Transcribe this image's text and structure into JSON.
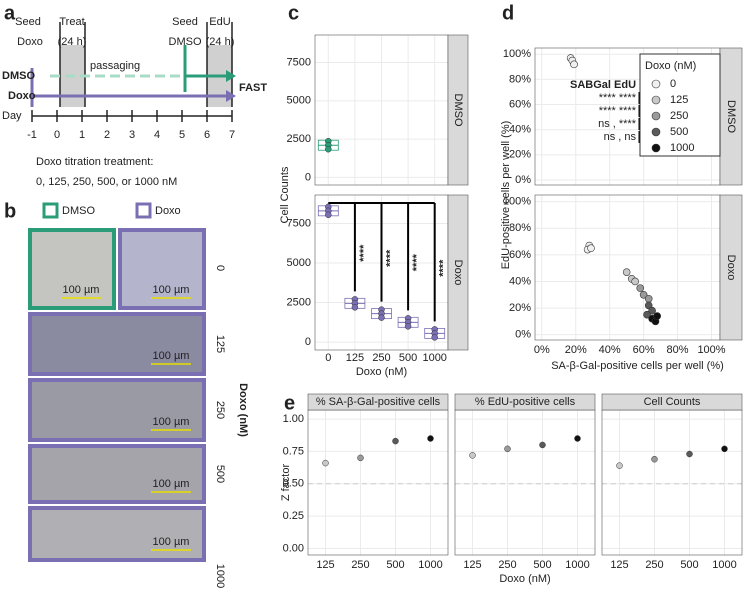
{
  "panel_labels": [
    "a",
    "b",
    "c",
    "d",
    "e"
  ],
  "timeline": {
    "seed_doxo": [
      "Seed",
      "Doxo"
    ],
    "treat": [
      "Treat",
      "(24 h)"
    ],
    "seed_dmso": [
      "Seed",
      "DMSO"
    ],
    "edu": [
      "EdU",
      "(24 h)"
    ],
    "arrow_dmso": "DMSO",
    "passaging": "passaging",
    "arrow_doxo": "Doxo",
    "fast": "FAST",
    "day_label": "Day",
    "days": [
      -1,
      0,
      1,
      2,
      3,
      4,
      5,
      6,
      7
    ],
    "note": [
      "Doxo titration treatment:",
      "0, 125, 250, 500, or 1000 nM"
    ]
  },
  "images": {
    "legend": [
      "DMSO",
      "Doxo"
    ],
    "doses": [
      "0",
      "125",
      "250",
      "500",
      "1000"
    ],
    "dose_title": "Doxo (nM)",
    "scale_bar": "100 µm"
  },
  "chart_data": [
    {
      "type": "box",
      "facet": "DMSO",
      "categories": [
        "0",
        "125",
        "250",
        "500",
        "1000"
      ],
      "values": [
        2100,
        null,
        null,
        null,
        null
      ],
      "color": "#2a9d78",
      "ylim": [
        -500,
        9300
      ],
      "yticks": [
        0,
        2500,
        5000,
        7500
      ],
      "grid": true
    },
    {
      "type": "box",
      "facet": "Doxo",
      "categories": [
        "0",
        "125",
        "250",
        "500",
        "1000"
      ],
      "values": [
        8300,
        2450,
        1800,
        1250,
        550
      ],
      "color": "#7b6fb3",
      "ylim": [
        -500,
        9300
      ],
      "yticks": [
        0,
        2500,
        5000,
        7500
      ],
      "grid": true,
      "y_label": "Cell Counts",
      "x_label": "Doxo (nM)",
      "annotations": [
        "****",
        "****",
        "****",
        "****"
      ]
    },
    {
      "type": "scatter",
      "facet": "DMSO",
      "series": [
        {
          "name": "0",
          "color": "#f0f0f0",
          "x": [
            17,
            18,
            19
          ],
          "y": [
            97,
            95,
            92
          ]
        }
      ],
      "xlim": [
        -4,
        105
      ],
      "ylim": [
        -4,
        105
      ],
      "yticks": [
        {
          "value": 0,
          "label": "0%"
        },
        {
          "value": 20,
          "label": "20%"
        },
        {
          "value": 40,
          "label": "40%"
        },
        {
          "value": 60,
          "label": "60%"
        },
        {
          "value": 80,
          "label": "80%"
        },
        {
          "value": 100,
          "label": "100%"
        }
      ],
      "annotation_header": "SABGal EdU",
      "annotations": [
        "**** ****",
        "**** ****",
        "ns , ****",
        "ns , ns"
      ],
      "grid": true
    },
    {
      "type": "scatter",
      "facet": "Doxo",
      "legend_title": "Doxo (nM)",
      "series": [
        {
          "name": "0",
          "color": "#f0f0f0",
          "x": [
            28,
            27,
            29
          ],
          "y": [
            67,
            64,
            65
          ]
        },
        {
          "name": "125",
          "color": "#c8c8c8",
          "x": [
            50,
            53,
            55
          ],
          "y": [
            47,
            42,
            40
          ]
        },
        {
          "name": "250",
          "color": "#9a9a9a",
          "x": [
            58,
            60,
            63
          ],
          "y": [
            35,
            30,
            27
          ]
        },
        {
          "name": "500",
          "color": "#5a5a5a",
          "x": [
            63,
            65,
            62
          ],
          "y": [
            22,
            18,
            15
          ]
        },
        {
          "name": "1000",
          "color": "#111111",
          "x": [
            65,
            67,
            68
          ],
          "y": [
            12,
            10,
            14
          ]
        }
      ],
      "xlim": [
        -4,
        105
      ],
      "ylim": [
        -4,
        105
      ],
      "xticks": [
        {
          "value": 0,
          "label": "0%"
        },
        {
          "value": 20,
          "label": "20%"
        },
        {
          "value": 40,
          "label": "40%"
        },
        {
          "value": 60,
          "label": "60%"
        },
        {
          "value": 80,
          "label": "80%"
        },
        {
          "value": 100,
          "label": "100%"
        }
      ],
      "yticks": [
        {
          "value": 0,
          "label": "0%"
        },
        {
          "value": 20,
          "label": "20%"
        },
        {
          "value": 40,
          "label": "40%"
        },
        {
          "value": 60,
          "label": "60%"
        },
        {
          "value": 80,
          "label": "80%"
        },
        {
          "value": 100,
          "label": "100%"
        }
      ],
      "x_label": "SA-β-Gal-positive cells per well (%)",
      "y_label": "EdU-positive cells per well (%)",
      "grid": true
    },
    {
      "type": "dot",
      "facet": "% SA-β-Gal-positive cells",
      "categories": [
        "125",
        "250",
        "500",
        "1000"
      ],
      "values": [
        0.66,
        0.7,
        0.83,
        0.85
      ],
      "colors": [
        "#c8c8c8",
        "#9a9a9a",
        "#5a5a5a",
        "#111111"
      ],
      "ylim": [
        -0.05,
        1.07
      ],
      "reference_line": 0.5,
      "yticks": [
        {
          "value": 0,
          "label": "0.00"
        },
        {
          "value": 0.25,
          "label": "0.25"
        },
        {
          "value": 0.5,
          "label": "0.50"
        },
        {
          "value": 0.75,
          "label": "0.75"
        },
        {
          "value": 1,
          "label": "1.00"
        }
      ],
      "y_label": "Z factor",
      "grid": true
    },
    {
      "type": "dot",
      "facet": "% EdU-positive cells",
      "categories": [
        "125",
        "250",
        "500",
        "1000"
      ],
      "values": [
        0.72,
        0.77,
        0.8,
        0.85
      ],
      "colors": [
        "#c8c8c8",
        "#9a9a9a",
        "#5a5a5a",
        "#111111"
      ],
      "ylim": [
        -0.05,
        1.07
      ],
      "reference_line": 0.5,
      "x_label": "Doxo (nM)",
      "grid": true
    },
    {
      "type": "dot",
      "facet": "Cell Counts",
      "categories": [
        "125",
        "250",
        "500",
        "1000"
      ],
      "values": [
        0.64,
        0.69,
        0.73,
        0.77
      ],
      "colors": [
        "#c8c8c8",
        "#9a9a9a",
        "#5a5a5a",
        "#111111"
      ],
      "ylim": [
        -0.05,
        1.07
      ],
      "reference_line": 0.5,
      "grid": true
    }
  ]
}
